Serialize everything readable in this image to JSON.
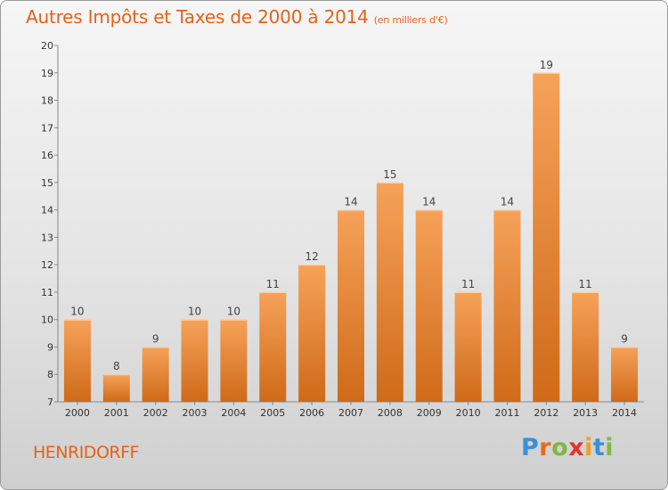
{
  "title": "Autres Impôts et Taxes de 2000 à 2014",
  "subtitle": "(en milliers d'€)",
  "location": "HENRIDORFF",
  "brand": {
    "letters": [
      "P",
      "r",
      "o",
      "x",
      "i",
      "t",
      "i"
    ],
    "colors": [
      "#3b8fd6",
      "#e36c1c",
      "#7fb93f",
      "#e0342d",
      "#f0a21f",
      "#3b8fd6",
      "#7fb93f"
    ]
  },
  "colors": {
    "bar_light": "#f6a25a",
    "bar_dark": "#cf6a18",
    "text_accent": "#e2621b"
  },
  "chart_data": {
    "type": "bar",
    "categories": [
      "2000",
      "2001",
      "2002",
      "2003",
      "2004",
      "2005",
      "2006",
      "2007",
      "2008",
      "2009",
      "2010",
      "2011",
      "2012",
      "2013",
      "2014"
    ],
    "values": [
      10,
      8,
      9,
      10,
      10,
      11,
      12,
      14,
      15,
      14,
      11,
      14,
      19,
      11,
      9
    ],
    "ylim": [
      7,
      20
    ],
    "yticks": [
      7,
      8,
      9,
      10,
      11,
      12,
      13,
      14,
      15,
      16,
      17,
      18,
      19,
      20
    ],
    "grid": false
  }
}
